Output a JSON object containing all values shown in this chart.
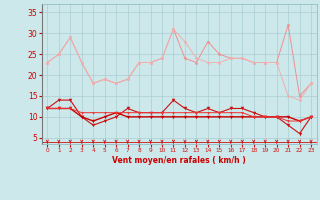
{
  "x": [
    0,
    1,
    2,
    3,
    4,
    5,
    6,
    7,
    8,
    9,
    10,
    11,
    12,
    13,
    14,
    15,
    16,
    17,
    18,
    19,
    20,
    21,
    22,
    23
  ],
  "line_top1": [
    23,
    25,
    29,
    23,
    18,
    19,
    18,
    19,
    23,
    23,
    24,
    31,
    24,
    23,
    28,
    25,
    24,
    24,
    23,
    23,
    23,
    32,
    15,
    18
  ],
  "line_top2": [
    23,
    25,
    29,
    23,
    18,
    19,
    18,
    19,
    23,
    23,
    24,
    31,
    28,
    24,
    23,
    23,
    24,
    24,
    23,
    23,
    23,
    15,
    14,
    18
  ],
  "line_mid1": [
    12,
    14,
    14,
    10,
    8,
    9,
    10,
    12,
    11,
    11,
    11,
    14,
    12,
    11,
    12,
    11,
    12,
    12,
    11,
    10,
    10,
    8,
    6,
    10
  ],
  "line_mid2": [
    12,
    12,
    12,
    10,
    9,
    10,
    11,
    10,
    10,
    10,
    10,
    10,
    10,
    10,
    10,
    10,
    10,
    10,
    10,
    10,
    10,
    10,
    9,
    10
  ],
  "line_flat": [
    12,
    12,
    12,
    11,
    11,
    11,
    11,
    11,
    11,
    11,
    11,
    11,
    11,
    11,
    11,
    11,
    11,
    11,
    10,
    10,
    10,
    9,
    9,
    10
  ],
  "bg_color": "#cce8ea",
  "grid_color": "#aacdd4",
  "line_top1_color": "#f09090",
  "line_top2_color": "#f0b0b0",
  "line_mid1_color": "#cc1111",
  "line_mid2_color": "#cc0000",
  "line_flat_color": "#ee3333",
  "arrow_color": "#cc1111",
  "xlabel": "Vent moyen/en rafales ( km/h )",
  "xlabel_color": "#cc0000",
  "ylabel_color": "#cc0000",
  "yticks": [
    5,
    10,
    15,
    20,
    25,
    30,
    35
  ],
  "ylim": [
    3.5,
    37
  ],
  "xlim": [
    -0.5,
    23.5
  ]
}
